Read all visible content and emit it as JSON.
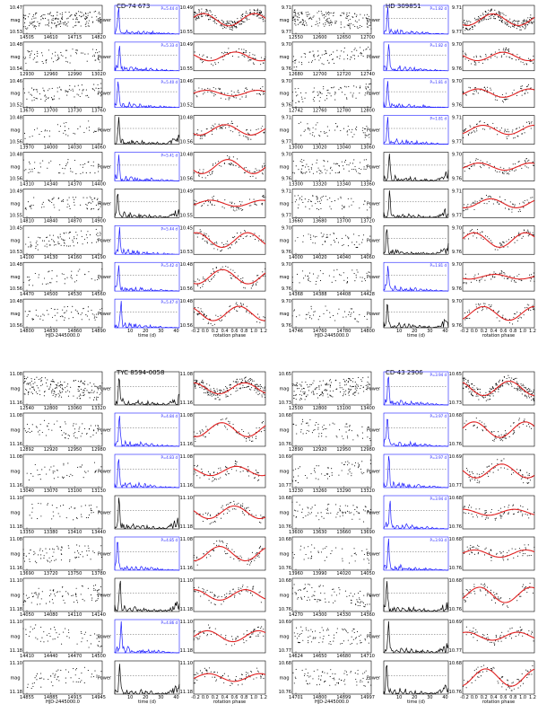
{
  "chart_data": {
    "type": "scatter",
    "layout": "4 panels x (rows of light-curve / periodogram / phase-folded)",
    "colors": {
      "points": "#000000",
      "periodogram_highlight": "#1a1aff",
      "fit": "#e02020"
    },
    "axis_labels": {
      "lc_y": "mag",
      "pg_y": "Power",
      "lc_x": "HJD-2445000.0",
      "pg_x": "time (d)",
      "ph_x": "rotation phase"
    },
    "pg_xticks": [
      "10",
      "20",
      "30",
      "40"
    ],
    "ph_xticks": [
      "-0.2",
      "0.0",
      "0.2",
      "0.4",
      "0.6",
      "0.8",
      "1.0",
      "1.2"
    ],
    "panels": [
      {
        "title": "CD-74 673",
        "rows": [
          {
            "hjd": [
              "14505",
              "14610",
              "14715",
              "14820"
            ],
            "mag": [
              "10.47",
              "10.53"
            ],
            "ph_mag": [
              "10.49",
              "10.55"
            ],
            "power": "P=5.44 d",
            "blue": true
          },
          {
            "hjd": [
              "12930",
              "12960",
              "12990",
              "13020"
            ],
            "mag": [
              "10.48",
              "10.54"
            ],
            "ph_mag": [
              "10.49",
              "10.55"
            ],
            "power": "P=5.33 d",
            "blue": true
          },
          {
            "hjd": [
              "13670",
              "13700",
              "13730",
              "13760"
            ],
            "mag": [
              "10.46",
              "10.52"
            ],
            "ph_mag": [
              "10.46",
              "10.52"
            ],
            "power": "P=5.40 d",
            "blue": true
          },
          {
            "hjd": [
              "13970",
              "14000",
              "14030",
              "14060"
            ],
            "mag": [
              "10.48",
              "10.56"
            ],
            "ph_mag": [
              "10.48",
              "10.56"
            ],
            "power": "",
            "blue": false
          },
          {
            "hjd": [
              "14310",
              "14340",
              "14370",
              "14400"
            ],
            "mag": [
              "10.48",
              "10.56"
            ],
            "ph_mag": [
              "10.48",
              "10.56"
            ],
            "power": "P=5.41 d",
            "blue": true
          },
          {
            "hjd": [
              "14810",
              "14840",
              "14870",
              "14900"
            ],
            "mag": [
              "10.49",
              "10.55"
            ],
            "ph_mag": [
              "10.49",
              "10.55"
            ],
            "power": "",
            "blue": false
          },
          {
            "hjd": [
              "14100",
              "14130",
              "14160",
              "14190"
            ],
            "mag": [
              "10.45",
              "10.53"
            ],
            "ph_mag": [
              "10.45",
              "10.53"
            ],
            "power": "P=5.44 d",
            "blue": true
          },
          {
            "hjd": [
              "14470",
              "14500",
              "14530",
              "14560"
            ],
            "mag": [
              "10.48",
              "10.56"
            ],
            "ph_mag": [
              "10.48",
              "10.56"
            ],
            "power": "P=5.42 d",
            "blue": true
          },
          {
            "hjd": [
              "14800",
              "14830",
              "14860",
              "14890"
            ],
            "mag": [
              "10.48",
              "10.56"
            ],
            "ph_mag": [
              "10.48",
              "10.56"
            ],
            "power": "P=5.47 d",
            "blue": true
          }
        ]
      },
      {
        "title": "HD 309851",
        "rows": [
          {
            "hjd": [
              "12550",
              "12600",
              "12650",
              "12700"
            ],
            "mag": [
              "9.71",
              "9.77"
            ],
            "ph_mag": [
              "9.71",
              "9.77"
            ],
            "power": "P=1.82 d",
            "blue": true
          },
          {
            "hjd": [
              "12680",
              "12700",
              "12720",
              "12740"
            ],
            "mag": [
              "9.70",
              "9.76"
            ],
            "ph_mag": [
              "9.70",
              "9.76"
            ],
            "power": "P=1.82 d",
            "blue": true
          },
          {
            "hjd": [
              "12742",
              "12760",
              "12780",
              "12800"
            ],
            "mag": [
              "9.70",
              "9.76"
            ],
            "ph_mag": [
              "9.70",
              "9.76"
            ],
            "power": "P=1.81 d",
            "blue": true
          },
          {
            "hjd": [
              "13000",
              "13020",
              "13040",
              "13060"
            ],
            "mag": [
              "9.71",
              "9.77"
            ],
            "ph_mag": [
              "9.71",
              "9.77"
            ],
            "power": "P=1.81 d",
            "blue": true
          },
          {
            "hjd": [
              "13300",
              "13320",
              "13340",
              "13360"
            ],
            "mag": [
              "9.70",
              "9.76"
            ],
            "ph_mag": [
              "9.70",
              "9.76"
            ],
            "power": "",
            "blue": false
          },
          {
            "hjd": [
              "13660",
              "13680",
              "13700",
              "13720"
            ],
            "mag": [
              "9.71",
              "9.77"
            ],
            "ph_mag": [
              "9.71",
              "9.77"
            ],
            "power": "",
            "blue": false
          },
          {
            "hjd": [
              "14000",
              "14020",
              "14040",
              "14060"
            ],
            "mag": [
              "9.70",
              "9.76"
            ],
            "ph_mag": [
              "9.70",
              "9.76"
            ],
            "power": "",
            "blue": false
          },
          {
            "hjd": [
              "14368",
              "14388",
              "14408",
              "14428"
            ],
            "mag": [
              "9.70",
              "9.76"
            ],
            "ph_mag": [
              "9.70",
              "9.76"
            ],
            "power": "P=1.81 d",
            "blue": true
          },
          {
            "hjd": [
              "14746",
              "14760",
              "14780",
              "14800"
            ],
            "mag": [
              "9.70",
              "9.76"
            ],
            "ph_mag": [
              "9.70",
              "9.76"
            ],
            "power": "",
            "blue": false
          }
        ]
      },
      {
        "title": "TYC 8594-0058",
        "rows": [
          {
            "hjd": [
              "12540",
              "12800",
              "13060",
              "13320"
            ],
            "mag": [
              "11.08",
              "11.16"
            ],
            "ph_mag": [
              "11.08",
              "11.16"
            ],
            "power": "",
            "blue": false
          },
          {
            "hjd": [
              "12892",
              "12920",
              "12950",
              "12980"
            ],
            "mag": [
              "11.08",
              "11.16"
            ],
            "ph_mag": [
              "11.08",
              "11.16"
            ],
            "power": "P=4.84 d",
            "blue": true
          },
          {
            "hjd": [
              "13040",
              "13070",
              "13100",
              "13130"
            ],
            "mag": [
              "11.08",
              "11.16"
            ],
            "ph_mag": [
              "11.08",
              "11.16"
            ],
            "power": "P=4.83 d",
            "blue": true
          },
          {
            "hjd": [
              "13350",
              "13380",
              "13410",
              "13440"
            ],
            "mag": [
              "11.10",
              "11.18"
            ],
            "ph_mag": [
              "11.10",
              "11.18"
            ],
            "power": "",
            "blue": false
          },
          {
            "hjd": [
              "13690",
              "13720",
              "13750",
              "13780"
            ],
            "mag": [
              "11.08",
              "11.16"
            ],
            "ph_mag": [
              "11.08",
              "11.16"
            ],
            "power": "P=4.85 d",
            "blue": true
          },
          {
            "hjd": [
              "14050",
              "14080",
              "14110",
              "14140"
            ],
            "mag": [
              "11.10",
              "11.18"
            ],
            "ph_mag": [
              "11.10",
              "11.18"
            ],
            "power": "",
            "blue": false
          },
          {
            "hjd": [
              "14410",
              "14440",
              "14470",
              "14500"
            ],
            "mag": [
              "11.10",
              "11.18"
            ],
            "ph_mag": [
              "11.10",
              "11.18"
            ],
            "power": "P=4.86 d",
            "blue": true
          },
          {
            "hjd": [
              "14855",
              "14885",
              "14915",
              "14945"
            ],
            "mag": [
              "11.10",
              "11.18"
            ],
            "ph_mag": [
              "11.10",
              "11.18"
            ],
            "power": "",
            "blue": false
          }
        ]
      },
      {
        "title": "CD-43 2906",
        "rows": [
          {
            "hjd": [
              "12500",
              "12800",
              "13100",
              "13400"
            ],
            "mag": [
              "10.65",
              "10.73"
            ],
            "ph_mag": [
              "10.65",
              "10.73"
            ],
            "power": "P=3.94 d",
            "blue": true
          },
          {
            "hjd": [
              "12890",
              "12920",
              "12950",
              "12980"
            ],
            "mag": [
              "10.68",
              "10.76"
            ],
            "ph_mag": [
              "10.68",
              "10.76"
            ],
            "power": "P=3.97 d",
            "blue": true
          },
          {
            "hjd": [
              "13230",
              "13260",
              "13290",
              "13320"
            ],
            "mag": [
              "10.69",
              "10.77"
            ],
            "ph_mag": [
              "10.69",
              "10.77"
            ],
            "power": "P=3.97 d",
            "blue": true
          },
          {
            "hjd": [
              "13600",
              "13630",
              "13660",
              "13690"
            ],
            "mag": [
              "10.68",
              "10.76"
            ],
            "ph_mag": [
              "10.68",
              "10.76"
            ],
            "power": "P=3.94 d",
            "blue": true
          },
          {
            "hjd": [
              "13960",
              "13990",
              "14020",
              "14050"
            ],
            "mag": [
              "10.68",
              "10.76"
            ],
            "ph_mag": [
              "10.68",
              "10.76"
            ],
            "power": "P=3.93 d",
            "blue": true
          },
          {
            "hjd": [
              "14270",
              "14300",
              "14330",
              "14360"
            ],
            "mag": [
              "10.68",
              "10.76"
            ],
            "ph_mag": [
              "10.68",
              "10.76"
            ],
            "power": "",
            "blue": false
          },
          {
            "hjd": [
              "14624",
              "14650",
              "14680",
              "14710"
            ],
            "mag": [
              "10.69",
              "10.77"
            ],
            "ph_mag": [
              "10.69",
              "10.77"
            ],
            "power": "",
            "blue": false
          },
          {
            "hjd": [
              "14701",
              "14800",
              "14899",
              "14997"
            ],
            "mag": [
              "10.68",
              "10.76"
            ],
            "ph_mag": [
              "10.68",
              "10.76"
            ],
            "power": "",
            "blue": false
          }
        ]
      }
    ]
  }
}
